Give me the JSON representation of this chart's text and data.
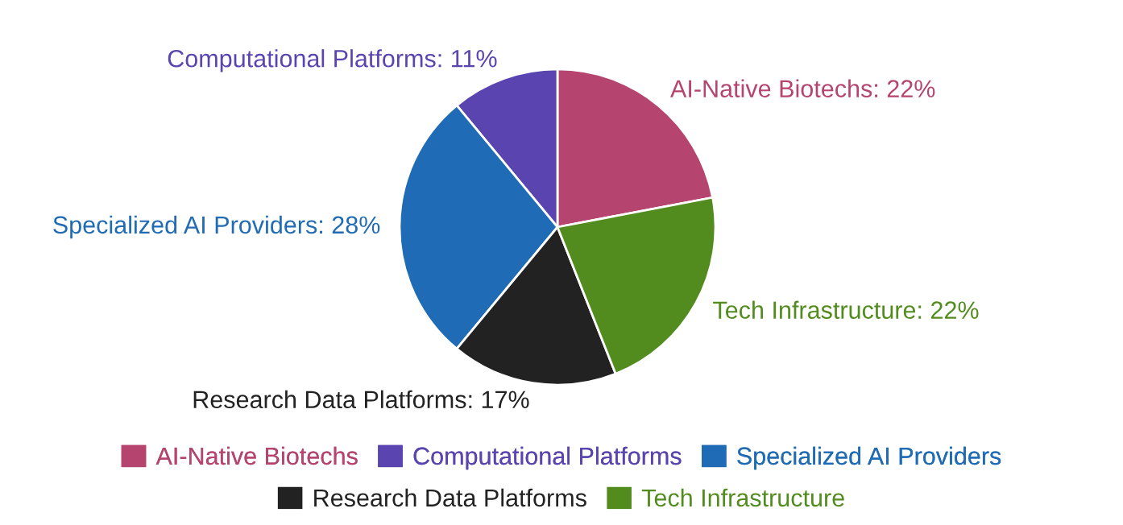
{
  "chart_data": {
    "type": "pie",
    "categories": [
      "AI-Native Biotechs",
      "Computational Platforms",
      "Specialized AI Providers",
      "Research Data Platforms",
      "Tech Infrastructure"
    ],
    "values": [
      22,
      11,
      28,
      17,
      22
    ],
    "value_labels": [
      "AI-Native Biotechs: 22%",
      "Computational Platforms: 11%",
      "Specialized AI Providers: 28%",
      "Research Data Platforms: 17%",
      "Tech Infrastructure: 22%"
    ],
    "colors": [
      "#b5446e",
      "#5a45b0",
      "#1f6bb5",
      "#222222",
      "#528c1e"
    ],
    "legend": "bottom"
  }
}
